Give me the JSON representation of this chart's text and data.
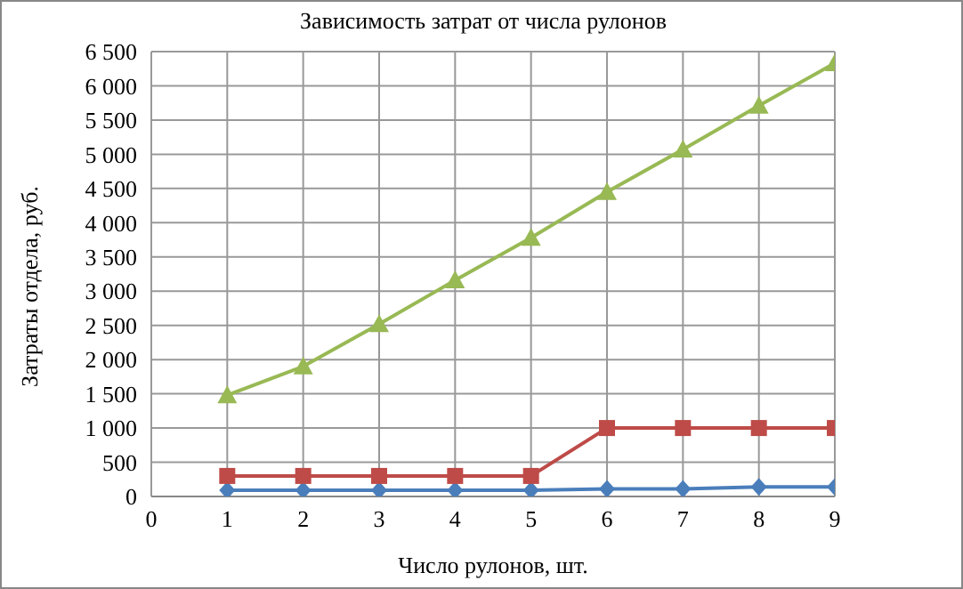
{
  "chart_data": {
    "type": "line",
    "title": "Зависимость затрат от числа рулонов",
    "xlabel": "Число рулонов, шт.",
    "ylabel": "Затраты отдела, руб.",
    "x": [
      1,
      2,
      3,
      4,
      5,
      6,
      7,
      8,
      9
    ],
    "series": [
      {
        "color": "#4a7ebb",
        "marker": "diamond",
        "values": [
          90,
          90,
          90,
          90,
          90,
          110,
          110,
          140,
          140
        ]
      },
      {
        "color": "#be4b48",
        "marker": "square",
        "values": [
          300,
          300,
          300,
          300,
          300,
          1000,
          1000,
          1000,
          1000
        ]
      },
      {
        "color": "#98b954",
        "marker": "triangle",
        "values": [
          1480,
          1900,
          2520,
          3160,
          3780,
          4450,
          5070,
          5710,
          6330
        ]
      }
    ],
    "xlim": [
      0,
      9
    ],
    "xticks": [
      0,
      1,
      2,
      3,
      4,
      5,
      6,
      7,
      8,
      9
    ],
    "ylim": [
      0,
      6500
    ],
    "yticks": [
      0,
      500,
      {
        "value": 1000,
        "label": "1 000"
      },
      {
        "value": 1500,
        "label": "1 500"
      },
      {
        "value": 2000,
        "label": "2 000"
      },
      {
        "value": 2500,
        "label": "2 500"
      },
      {
        "value": 3000,
        "label": "3 000"
      },
      {
        "value": 3500,
        "label": "3 500"
      },
      {
        "value": 4000,
        "label": "4 000"
      },
      {
        "value": 4500,
        "label": "4 500"
      },
      {
        "value": 5000,
        "label": "5 000"
      },
      {
        "value": 5500,
        "label": "5 500"
      },
      {
        "value": 6000,
        "label": "6 000"
      },
      {
        "value": 6500,
        "label": "6 500"
      }
    ],
    "grid": true,
    "legend": false,
    "line_style": "solid"
  }
}
